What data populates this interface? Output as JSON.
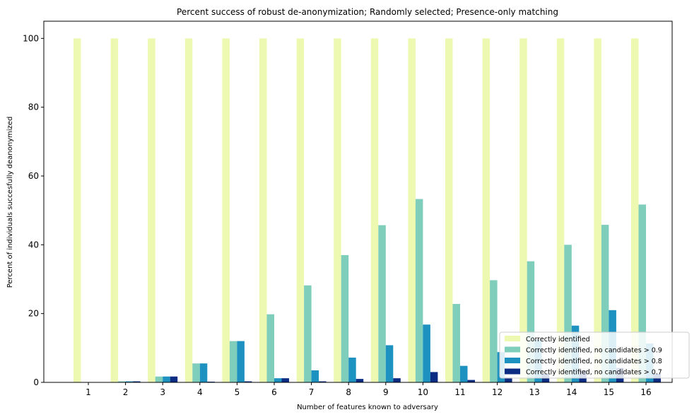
{
  "chart_data": {
    "type": "bar",
    "title": "Percent success of robust de-anonymization; Randomly selected; Presence-only matching",
    "xlabel": "Number of features known to adversary",
    "ylabel": "Percent of individuals succesfully deanonymized",
    "categories": [
      "1",
      "2",
      "3",
      "4",
      "5",
      "6",
      "7",
      "8",
      "9",
      "10",
      "11",
      "12",
      "13",
      "14",
      "15",
      "16"
    ],
    "ylim": [
      0,
      105
    ],
    "yticks": [
      0,
      20,
      40,
      60,
      80,
      100
    ],
    "legend_position": "lower-right",
    "grid": false,
    "series": [
      {
        "name": "Correctly identified",
        "color": "#edf8b1",
        "values": [
          100,
          100,
          100,
          100,
          100,
          100,
          100,
          100,
          100,
          100,
          100,
          100,
          100,
          100,
          100,
          100
        ]
      },
      {
        "name": "Correctly identified, no candidates > 0.9",
        "color": "#7fcdbb",
        "values": [
          0,
          0.3,
          1.7,
          5.5,
          12.0,
          19.8,
          28.2,
          37.0,
          45.7,
          53.3,
          22.8,
          29.7,
          35.2,
          40.0,
          45.8,
          51.7
        ]
      },
      {
        "name": "Correctly identified, no candidates > 0.8",
        "color": "#1d91c0",
        "values": [
          0,
          0.3,
          1.7,
          5.5,
          12.0,
          1.2,
          3.5,
          7.2,
          10.8,
          16.8,
          4.8,
          8.8,
          12.5,
          16.5,
          21.0,
          11.3
        ]
      },
      {
        "name": "Correctly identified, no candidates > 0.7",
        "color": "#0c2c84",
        "values": [
          0,
          0.3,
          1.7,
          0.2,
          0.3,
          1.2,
          0.3,
          1.0,
          1.2,
          3.0,
          0.7,
          1.5,
          2.5,
          3.5,
          4.2,
          2.5
        ]
      }
    ]
  }
}
